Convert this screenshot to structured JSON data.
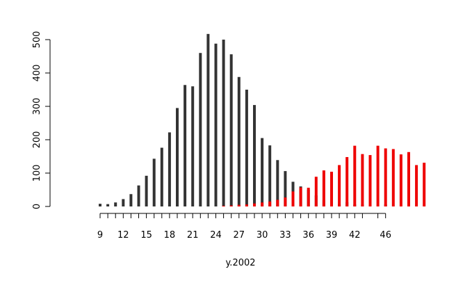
{
  "chart_data": {
    "type": "bar",
    "xlabel": "y.2002",
    "ylabel": "",
    "title": "",
    "ylim": [
      0,
      520
    ],
    "y_ticks": [
      0,
      100,
      200,
      300,
      400,
      500
    ],
    "x_tick_labels": [
      "9",
      "12",
      "15",
      "18",
      "21",
      "24",
      "27",
      "30",
      "33",
      "36",
      "39",
      "42",
      "46"
    ],
    "x_tick_labels_at": [
      9,
      12,
      15,
      18,
      21,
      24,
      27,
      30,
      33,
      36,
      39,
      42,
      46
    ],
    "x_tick_marks_at": [
      9,
      10,
      11,
      12,
      13,
      14,
      15,
      16,
      17,
      18,
      19,
      20,
      21,
      22,
      23,
      24,
      25,
      26,
      27,
      28,
      29,
      30,
      31,
      32,
      33,
      34,
      35,
      36,
      37,
      38,
      39,
      40,
      41,
      42,
      43,
      45,
      46
    ],
    "series": [
      {
        "color": "#333333",
        "x": [
          9,
          10,
          11,
          12,
          13,
          14,
          15,
          16,
          17,
          18,
          19,
          20,
          21,
          22,
          23,
          24,
          25,
          26,
          27,
          28,
          29,
          30,
          31,
          32,
          33,
          34,
          35,
          36,
          37,
          38,
          39,
          40,
          41,
          42,
          43,
          46
        ],
        "values": [
          8,
          7,
          12,
          22,
          37,
          63,
          92,
          143,
          176,
          222,
          295,
          364,
          360,
          460,
          517,
          488,
          500,
          456,
          388,
          350,
          304,
          205,
          183,
          139,
          106,
          74,
          60,
          50,
          33,
          19,
          15,
          7,
          13,
          6,
          6,
          6
        ]
      },
      {
        "color": "#ee0000",
        "x": [
          25,
          26,
          27,
          28,
          29,
          30,
          31,
          32,
          33,
          34,
          35,
          36,
          37,
          38,
          39,
          40,
          41,
          42,
          43,
          44,
          45,
          46,
          47,
          48,
          49,
          50,
          51,
          52
        ],
        "values": [
          2,
          3,
          5,
          6,
          9,
          12,
          15,
          20,
          27,
          45,
          57,
          56,
          89,
          108,
          104,
          124,
          148,
          182,
          157,
          154,
          182,
          174,
          172,
          156,
          163,
          124,
          131,
          0
        ]
      }
    ]
  }
}
